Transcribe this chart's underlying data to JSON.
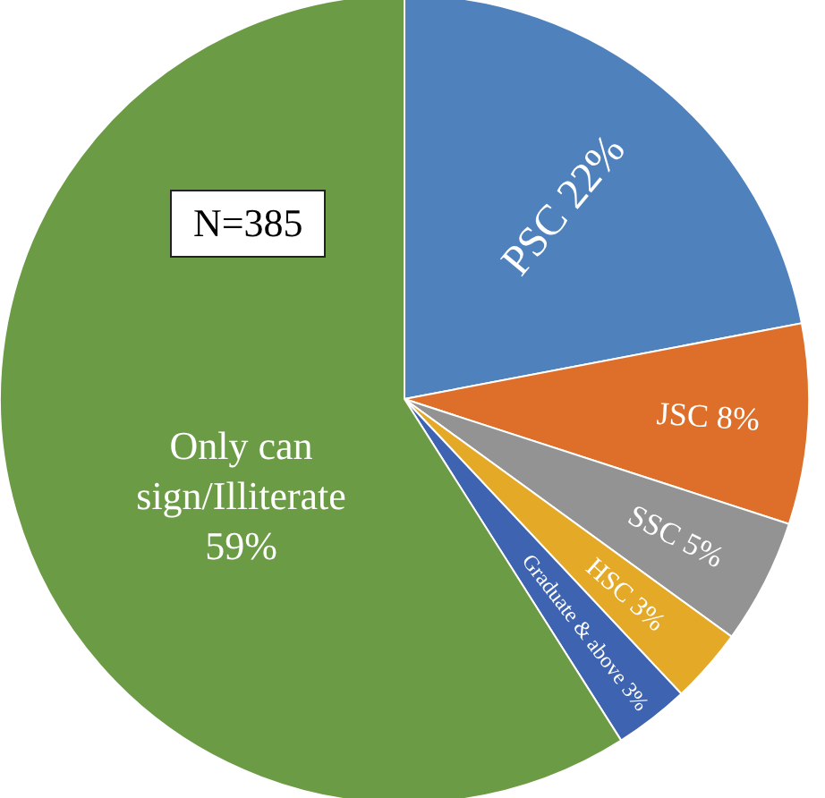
{
  "chart_data": {
    "type": "pie",
    "categories": [
      "PSC",
      "JSC",
      "SSC",
      "HSC",
      "Graduate & above",
      "Only can sign/Illiterate"
    ],
    "values": [
      22,
      8,
      5,
      3,
      3,
      59
    ],
    "value_labels": [
      "22%",
      "8%",
      "5%",
      "3%",
      "3%",
      "59%"
    ],
    "colors": [
      "#4f81bd",
      "#dd6f2a",
      "#939393",
      "#e5a928",
      "#3e64b1",
      "#6b9c45"
    ],
    "annotations": [
      "N=385"
    ]
  }
}
